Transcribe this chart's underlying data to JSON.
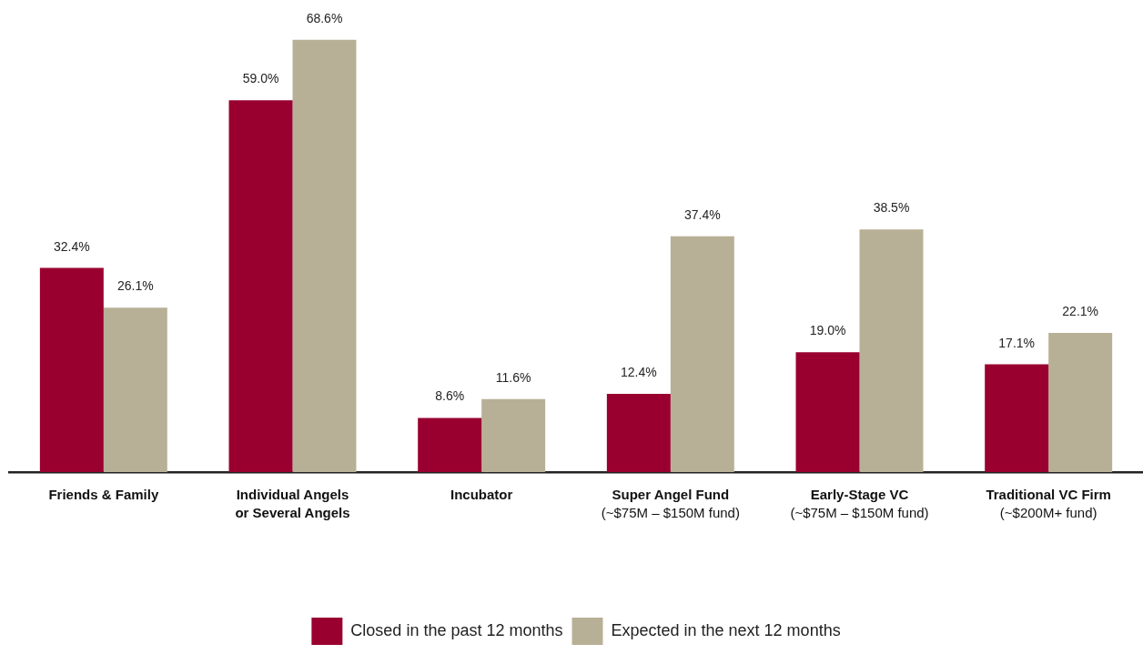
{
  "chart_data": {
    "type": "bar",
    "categories": [
      "Friends & Family",
      "Individual Angels\nor Several Angels",
      "Incubator",
      "Super Angel Fund\n(~$75M – $150M fund)",
      "Early-Stage VC\n(~$75M – $150M fund)",
      "Traditional VC Firm\n(~$200M+ fund)"
    ],
    "series": [
      {
        "name": "Closed in the past 12 months",
        "color": "#990030",
        "values": [
          32.4,
          59.0,
          8.6,
          12.4,
          19.0,
          17.1
        ],
        "value_labels": [
          "32.4%",
          "59.0%",
          "8.6%",
          "12.4%",
          "19.0%",
          "17.1%"
        ]
      },
      {
        "name": "Expected in the next 12 months",
        "color": "#b8b096",
        "values": [
          26.1,
          68.6,
          11.6,
          37.4,
          38.5,
          22.1
        ],
        "value_labels": [
          "26.1%",
          "68.6%",
          "11.6%",
          "37.4%",
          "38.5%",
          "22.1%"
        ]
      }
    ],
    "legend": "bottom"
  }
}
